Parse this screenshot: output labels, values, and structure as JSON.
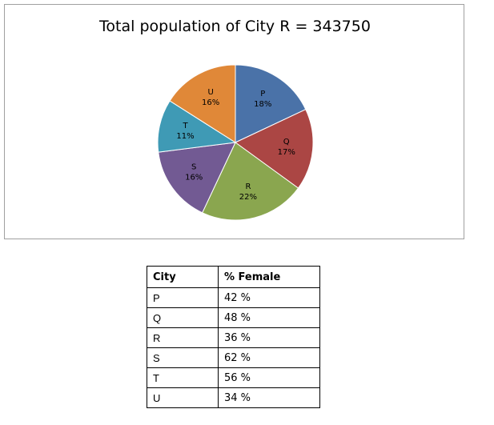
{
  "chart_data": {
    "type": "pie",
    "title": "Total population of City R = 343750",
    "categories": [
      "P",
      "Q",
      "R",
      "S",
      "T",
      "U"
    ],
    "values": [
      18,
      17,
      22,
      16,
      11,
      16
    ],
    "value_labels": [
      "18%",
      "17%",
      "22%",
      "16%",
      "11%",
      "16%"
    ],
    "colors": [
      "#4a72a8",
      "#ab4644",
      "#8aa64f",
      "#725a93",
      "#3f9ab5",
      "#e08838"
    ],
    "start_angle": "12 o'clock",
    "direction": "clockwise",
    "legend": "none"
  },
  "table": {
    "headers": [
      "City",
      "% Female"
    ],
    "rows": [
      [
        "P",
        "42 %"
      ],
      [
        "Q",
        "48 %"
      ],
      [
        "R",
        "36 %"
      ],
      [
        "S",
        "62 %"
      ],
      [
        "T",
        "56 %"
      ],
      [
        "U",
        "34 %"
      ]
    ]
  }
}
